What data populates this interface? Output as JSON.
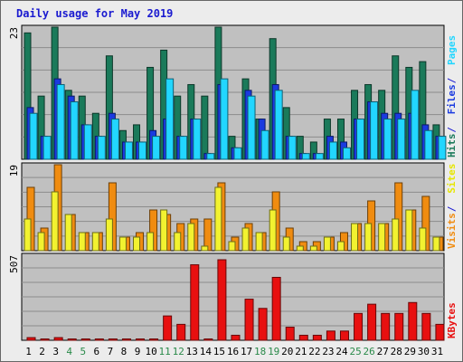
{
  "title": "Daily usage for May 2019",
  "colors": {
    "hits": "#1a7a5a",
    "files": "#1a3ae0",
    "pages": "#22d6ff",
    "visits": "#f08c10",
    "sites": "#f2f230",
    "kbytes": "#e81010",
    "day_black": "#000000",
    "day_weekend": "#2a8a4a",
    "separator": "#1a1ad0"
  },
  "legends": {
    "top": [
      {
        "text": "Hits",
        "color": "#1a7a5a"
      },
      {
        "text": "Files",
        "color": "#1a3ae0"
      },
      {
        "text": "Pages",
        "color": "#22d6ff"
      }
    ],
    "middle": [
      {
        "text": "Visits",
        "color": "#f08c10"
      },
      {
        "text": "Sites",
        "color": "#e6e600"
      }
    ],
    "bottom": [
      {
        "text": "KBytes",
        "color": "#e81010"
      }
    ]
  },
  "chart_data": [
    {
      "type": "bar",
      "panel": "hits-files-pages",
      "ymax_label": "23",
      "ylim": [
        0,
        23
      ],
      "categories": [
        "1",
        "2",
        "3",
        "4",
        "5",
        "6",
        "7",
        "8",
        "9",
        "10",
        "11",
        "12",
        "13",
        "14",
        "15",
        "16",
        "17",
        "18",
        "19",
        "20",
        "21",
        "22",
        "23",
        "24",
        "25",
        "26",
        "27",
        "28",
        "29",
        "30",
        "31"
      ],
      "weekend_days": [
        "4",
        "5",
        "11",
        "12",
        "18",
        "19",
        "25",
        "26"
      ],
      "series": [
        {
          "name": "Hits",
          "values": [
            22,
            11,
            23,
            12,
            11,
            8,
            18,
            5,
            6,
            16,
            19,
            11,
            13,
            11,
            23,
            4,
            14,
            7,
            21,
            9,
            4,
            3,
            7,
            7,
            12,
            13,
            12,
            18,
            16,
            17,
            6
          ]
        },
        {
          "name": "Files",
          "values": [
            9,
            4,
            14,
            11,
            6,
            4,
            8,
            3,
            3,
            5,
            7,
            4,
            7,
            1,
            13,
            2,
            12,
            7,
            13,
            4,
            1,
            1,
            4,
            3,
            7,
            10,
            8,
            8,
            8,
            6,
            4
          ]
        },
        {
          "name": "Pages",
          "values": [
            8,
            4,
            13,
            10,
            6,
            4,
            7,
            3,
            3,
            4,
            14,
            4,
            7,
            1,
            14,
            2,
            11,
            5,
            12,
            4,
            1,
            1,
            3,
            2,
            7,
            10,
            7,
            7,
            12,
            5,
            4
          ]
        }
      ]
    },
    {
      "type": "bar",
      "panel": "visits-sites",
      "ymax_label": "19",
      "ylim": [
        0,
        19
      ],
      "categories": [
        "1",
        "2",
        "3",
        "4",
        "5",
        "6",
        "7",
        "8",
        "9",
        "10",
        "11",
        "12",
        "13",
        "14",
        "15",
        "16",
        "17",
        "18",
        "19",
        "20",
        "21",
        "22",
        "23",
        "24",
        "25",
        "26",
        "27",
        "28",
        "29",
        "30",
        "31"
      ],
      "series": [
        {
          "name": "Visits",
          "values": [
            14,
            5,
            19,
            8,
            4,
            4,
            15,
            3,
            4,
            9,
            8,
            6,
            7,
            7,
            15,
            3,
            6,
            4,
            13,
            5,
            2,
            2,
            3,
            4,
            6,
            11,
            6,
            15,
            9,
            12,
            3
          ]
        },
        {
          "name": "Sites",
          "values": [
            7,
            4,
            13,
            8,
            4,
            4,
            7,
            3,
            3,
            4,
            9,
            4,
            6,
            1,
            14,
            2,
            5,
            4,
            9,
            3,
            1,
            1,
            3,
            2,
            6,
            6,
            6,
            7,
            9,
            5,
            3
          ]
        }
      ]
    },
    {
      "type": "bar",
      "panel": "kbytes",
      "ymax_label": "507",
      "ylim": [
        0,
        507
      ],
      "categories": [
        "1",
        "2",
        "3",
        "4",
        "5",
        "6",
        "7",
        "8",
        "9",
        "10",
        "11",
        "12",
        "13",
        "14",
        "15",
        "16",
        "17",
        "18",
        "19",
        "20",
        "21",
        "22",
        "23",
        "24",
        "25",
        "26",
        "27",
        "28",
        "29",
        "30",
        "31"
      ],
      "series": [
        {
          "name": "KBytes",
          "values": [
            16,
            8,
            16,
            8,
            8,
            8,
            8,
            8,
            8,
            8,
            145,
            95,
            450,
            8,
            480,
            30,
            245,
            190,
            375,
            78,
            30,
            30,
            55,
            55,
            160,
            215,
            160,
            160,
            225,
            160,
            95
          ]
        }
      ]
    }
  ]
}
